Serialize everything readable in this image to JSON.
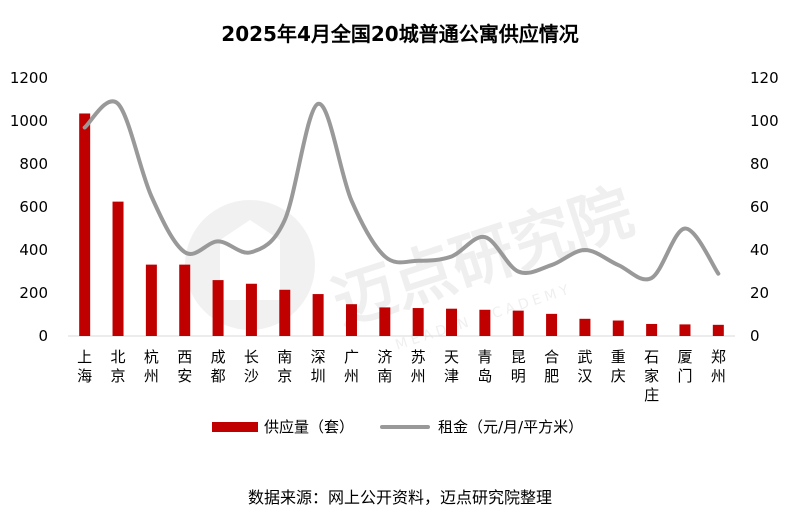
{
  "title": "2025年4月全国20城普通公寓供应情况",
  "source_note": "数据来源：网上公开资料，迈点研究院整理",
  "watermark": {
    "text": "迈点研究院",
    "subtext": "MEADIN ACADEMY"
  },
  "colors": {
    "bar": "#C00000",
    "line": "#999999"
  },
  "chart_data": {
    "type": "bar",
    "title": "2025年4月全国20城普通公寓供应情况",
    "categories": [
      "上海",
      "北京",
      "杭州",
      "西安",
      "成都",
      "长沙",
      "南京",
      "深圳",
      "广州",
      "济南",
      "苏州",
      "天津",
      "青岛",
      "昆明",
      "合肥",
      "武汉",
      "重庆",
      "石家庄",
      "厦门",
      "郑州"
    ],
    "category_labels": [
      [
        "上",
        "海"
      ],
      [
        "北",
        "京"
      ],
      [
        "杭",
        "州"
      ],
      [
        "西",
        "安"
      ],
      [
        "成",
        "都"
      ],
      [
        "长",
        "沙"
      ],
      [
        "南",
        "京"
      ],
      [
        "深",
        "圳"
      ],
      [
        "广",
        "州"
      ],
      [
        "济",
        "南"
      ],
      [
        "苏",
        "州"
      ],
      [
        "天",
        "津"
      ],
      [
        "青",
        "岛"
      ],
      [
        "昆",
        "明"
      ],
      [
        "合",
        "肥"
      ],
      [
        "武",
        "汉"
      ],
      [
        "重",
        "庆"
      ],
      [
        "石",
        "家",
        "庄"
      ],
      [
        "厦",
        "门"
      ],
      [
        "郑",
        "州"
      ]
    ],
    "series": [
      {
        "name": "供应量（套）",
        "type": "bar",
        "axis": "left",
        "values": [
          1035,
          625,
          332,
          332,
          260,
          243,
          215,
          195,
          148,
          133,
          130,
          127,
          122,
          118,
          103,
          80,
          72,
          56,
          54,
          52
        ]
      },
      {
        "name": "租金（元/月/平方米）",
        "type": "line",
        "axis": "right",
        "smooth": true,
        "values": [
          97,
          108,
          65,
          39,
          44,
          39,
          54,
          108,
          63,
          37,
          35,
          37,
          46,
          30,
          33,
          40,
          33,
          27,
          50,
          29
        ]
      }
    ],
    "y_left": {
      "range": [
        0,
        1200
      ],
      "ticks": [
        "0",
        "200",
        "400",
        "600",
        "800",
        "1000",
        "1200"
      ]
    },
    "y_right": {
      "range": [
        0,
        120
      ],
      "ticks": [
        "0",
        "20",
        "40",
        "60",
        "80",
        "100",
        "120"
      ]
    },
    "grid": false,
    "legend_position": "bottom"
  }
}
